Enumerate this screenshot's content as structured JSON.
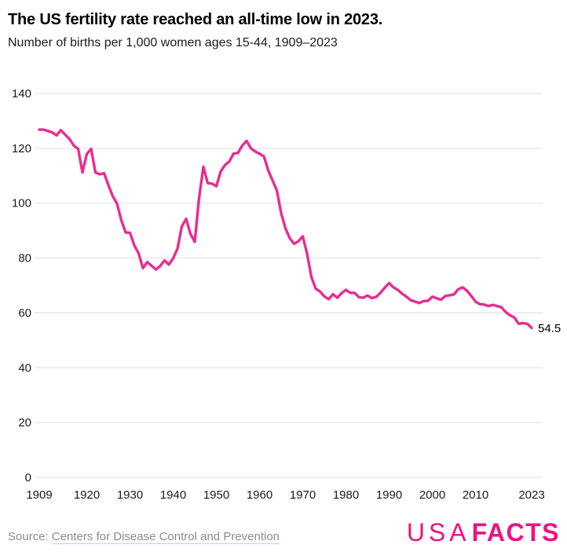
{
  "header": {
    "title": "The US fertility rate reached an all-time low in 2023.",
    "subtitle": "Number of births per 1,000 women ages 15-44, 1909–2023"
  },
  "footer": {
    "source_prefix": "Source: ",
    "source_link_text": "Centers for Disease Control and Prevention",
    "logo_part1": "USA",
    "logo_part2": "FACTS"
  },
  "colors": {
    "line": "#e72d92",
    "grid": "#e5e5e5",
    "axis_text": "#1c1c1c",
    "logo_pink": "#f01181",
    "source_text": "#8c8c8c",
    "link_underline": "#b3d2ec"
  },
  "chart_data": {
    "type": "line",
    "title": "The US fertility rate reached an all-time low in 2023.",
    "subtitle": "Number of births per 1,000 women ages 15-44, 1909–2023",
    "xlabel": "",
    "ylabel": "Number of births per 1,000 women ages 15-44",
    "ylim": [
      0,
      140
    ],
    "grid": true,
    "legend_position": "none",
    "yticks": [
      0,
      20,
      40,
      60,
      80,
      100,
      120,
      140
    ],
    "xticks": [
      1909,
      1920,
      1930,
      1940,
      1950,
      1960,
      1970,
      1980,
      1990,
      2000,
      2010,
      2023
    ],
    "end_label": "54.5",
    "x": [
      1909,
      1910,
      1911,
      1912,
      1913,
      1914,
      1915,
      1916,
      1917,
      1918,
      1919,
      1920,
      1921,
      1922,
      1923,
      1924,
      1925,
      1926,
      1927,
      1928,
      1929,
      1930,
      1931,
      1932,
      1933,
      1934,
      1935,
      1936,
      1937,
      1938,
      1939,
      1940,
      1941,
      1942,
      1943,
      1944,
      1945,
      1946,
      1947,
      1948,
      1949,
      1950,
      1951,
      1952,
      1953,
      1954,
      1955,
      1956,
      1957,
      1958,
      1959,
      1960,
      1961,
      1962,
      1963,
      1964,
      1965,
      1966,
      1967,
      1968,
      1969,
      1970,
      1971,
      1972,
      1973,
      1974,
      1975,
      1976,
      1977,
      1978,
      1979,
      1980,
      1981,
      1982,
      1983,
      1984,
      1985,
      1986,
      1987,
      1988,
      1989,
      1990,
      1991,
      1992,
      1993,
      1994,
      1995,
      1996,
      1997,
      1998,
      1999,
      2000,
      2001,
      2002,
      2003,
      2004,
      2005,
      2006,
      2007,
      2008,
      2009,
      2010,
      2011,
      2012,
      2013,
      2014,
      2015,
      2016,
      2017,
      2018,
      2019,
      2020,
      2021,
      2022,
      2023
    ],
    "values": [
      126.8,
      126.8,
      126.3,
      125.8,
      124.7,
      126.6,
      125.0,
      123.4,
      121.0,
      119.8,
      111.2,
      117.9,
      119.8,
      111.2,
      110.5,
      110.9,
      106.6,
      102.6,
      99.8,
      93.8,
      89.3,
      89.2,
      84.6,
      81.7,
      76.3,
      78.5,
      77.2,
      75.8,
      77.1,
      79.1,
      77.6,
      79.9,
      83.4,
      91.5,
      94.3,
      88.8,
      85.9,
      101.9,
      113.3,
      107.3,
      107.1,
      106.2,
      111.5,
      113.9,
      115.2,
      118.1,
      118.3,
      121.0,
      122.7,
      120.0,
      118.8,
      118.0,
      117.1,
      112.0,
      108.3,
      104.7,
      96.3,
      90.8,
      87.2,
      85.2,
      86.1,
      87.9,
      81.6,
      73.1,
      68.8,
      67.8,
      66.0,
      65.0,
      66.8,
      65.5,
      67.2,
      68.4,
      67.3,
      67.3,
      65.7,
      65.5,
      66.3,
      65.4,
      65.8,
      67.3,
      69.2,
      70.9,
      69.3,
      68.4,
      67.0,
      65.9,
      64.6,
      64.1,
      63.6,
      64.3,
      64.4,
      65.9,
      65.3,
      64.8,
      66.1,
      66.4,
      66.7,
      68.6,
      69.3,
      68.1,
      66.2,
      64.1,
      63.2,
      63.0,
      62.5,
      62.9,
      62.5,
      62.0,
      60.3,
      59.1,
      58.3,
      56.0,
      56.3,
      56.0,
      54.5
    ]
  }
}
